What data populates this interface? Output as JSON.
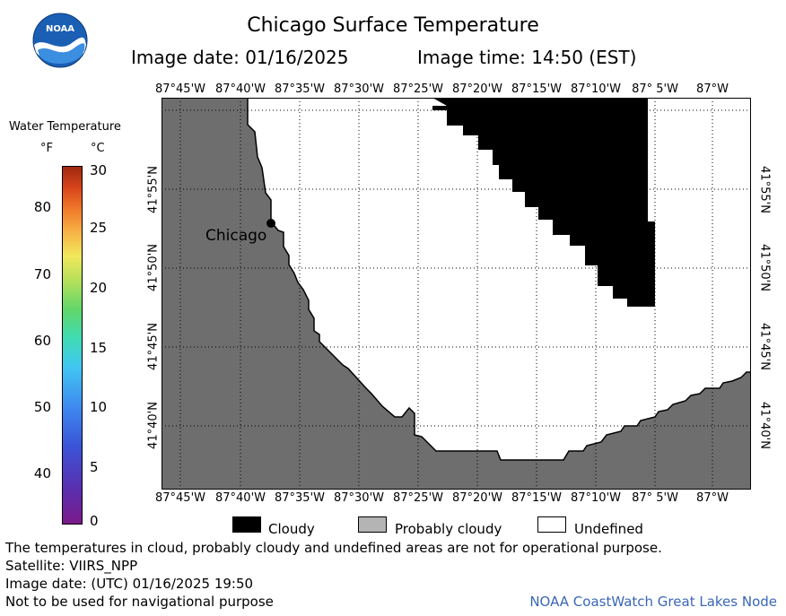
{
  "header": {
    "title": "Chicago Surface Temperature",
    "image_date": "Image date: 01/16/2025",
    "image_time": "Image time: 14:50 (EST)"
  },
  "logo": {
    "text": "NOAA"
  },
  "map": {
    "lon_labels_top": [
      "87°45'W",
      "87°40'W",
      "87°35'W",
      "87°30'W",
      "87°25'W",
      "87°20'W",
      "87°15'W",
      "87°10'W",
      "87° 5'W",
      "87°W"
    ],
    "lon_labels_bottom": [
      "87°45'W",
      "87°40'W",
      "87°35'W",
      "87°30'W",
      "87°25'W",
      "87°20'W",
      "87°15'W",
      "87°10'W",
      "87° 5'W",
      "87°W"
    ],
    "lat_labels_left": [
      "41°55'N",
      "41°50'N",
      "41°45'N",
      "41°40'N"
    ],
    "lat_labels_right": [
      "41°55'N",
      "41°50'N",
      "41°45'N",
      "41°40'N"
    ],
    "city_label": "Chicago",
    "colors": {
      "land": "#6e6e6e",
      "cloudy": "#000000",
      "probably_cloudy": "#b4b4b4",
      "undefined": "#ffffff",
      "grid": "#000000"
    }
  },
  "legend": {
    "title": "Water Temperature",
    "unit_f": "°F",
    "unit_c": "°C",
    "f_ticks": [
      "80",
      "70",
      "60",
      "50",
      "40"
    ],
    "c_ticks": [
      "30",
      "25",
      "20",
      "15",
      "10",
      "5",
      "0"
    ]
  },
  "key": {
    "cloudy": "Cloudy",
    "probably_cloudy": "Probably cloudy",
    "undefined": "Undefined"
  },
  "footer": {
    "disclaimer": "The temperatures in cloud, probably cloudy and undefined areas are not for operational purpose.",
    "satellite": "Satellite: VIIRS_NPP",
    "utc_date": "Image date: (UTC) 01/16/2025  19:50",
    "nav_warning": "Not to be used for navigational purpose",
    "credit": "NOAA CoastWatch Great Lakes Node"
  }
}
